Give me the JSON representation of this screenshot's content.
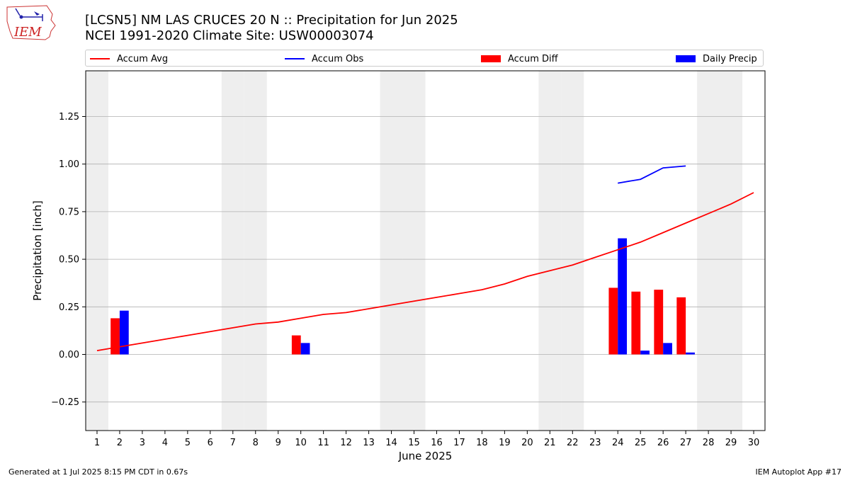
{
  "header": {
    "title_line1": "[LCSN5] NM LAS CRUCES 20 N :: Precipitation for Jun 2025",
    "title_line2": "NCEI 1991-2020 Climate Site: USW00003074"
  },
  "logo": {
    "text": "IEM",
    "icon": "iem-iowa-logo"
  },
  "legend": {
    "accum_avg": "Accum Avg",
    "accum_obs": "Accum Obs",
    "accum_diff": "Accum Diff",
    "daily_precip": "Daily Precip"
  },
  "colors": {
    "accum_avg": "#ff0000",
    "accum_obs": "#0000ff",
    "accum_diff": "#ff0000",
    "daily_precip": "#0000ff",
    "weekend_shade": "#eeeeee",
    "grid": "#b0b0b0"
  },
  "footer": {
    "left": "Generated at 1 Jul 2025 8:15 PM CDT in 0.67s",
    "right": "IEM Autoplot App #17"
  },
  "chart_data": {
    "type": "bar",
    "xlabel": "June 2025",
    "ylabel": "Precipitation [inch]",
    "xlim": [
      0.5,
      30.5
    ],
    "ylim": [
      -0.4,
      1.49
    ],
    "yticks": [
      -0.25,
      0.0,
      0.25,
      0.5,
      0.75,
      1.0,
      1.25
    ],
    "ytick_labels": [
      "−0.25",
      "0.00",
      "0.25",
      "0.50",
      "0.75",
      "1.00",
      "1.25"
    ],
    "days": [
      1,
      2,
      3,
      4,
      5,
      6,
      7,
      8,
      9,
      10,
      11,
      12,
      13,
      14,
      15,
      16,
      17,
      18,
      19,
      20,
      21,
      22,
      23,
      24,
      25,
      26,
      27,
      28,
      29,
      30
    ],
    "weekend_days": [
      1,
      7,
      8,
      14,
      15,
      21,
      22,
      28,
      29
    ],
    "grid": "horizontal",
    "legend_position": "top",
    "series": [
      {
        "name": "Accum Avg",
        "kind": "line",
        "x": [
          1,
          2,
          3,
          4,
          5,
          6,
          7,
          8,
          9,
          10,
          11,
          12,
          13,
          14,
          15,
          16,
          17,
          18,
          19,
          20,
          21,
          22,
          23,
          24,
          25,
          26,
          27,
          28,
          29,
          30
        ],
        "values": [
          0.02,
          0.04,
          0.06,
          0.08,
          0.1,
          0.12,
          0.14,
          0.16,
          0.17,
          0.19,
          0.21,
          0.22,
          0.24,
          0.26,
          0.28,
          0.3,
          0.32,
          0.34,
          0.37,
          0.41,
          0.44,
          0.47,
          0.51,
          0.55,
          0.59,
          0.64,
          0.69,
          0.74,
          0.79,
          0.85
        ]
      },
      {
        "name": "Accum Obs",
        "kind": "line",
        "x": [
          24,
          25,
          26,
          27
        ],
        "values": [
          0.9,
          0.92,
          0.98,
          0.99
        ]
      },
      {
        "name": "Accum Diff",
        "kind": "bar",
        "x": [
          2,
          10,
          24,
          25,
          26,
          27
        ],
        "values": [
          0.19,
          0.1,
          0.35,
          0.33,
          0.34,
          0.3
        ]
      },
      {
        "name": "Daily Precip",
        "kind": "bar",
        "x": [
          2,
          10,
          24,
          25,
          26,
          27
        ],
        "values": [
          0.23,
          0.06,
          0.61,
          0.02,
          0.06,
          0.01
        ]
      }
    ]
  }
}
